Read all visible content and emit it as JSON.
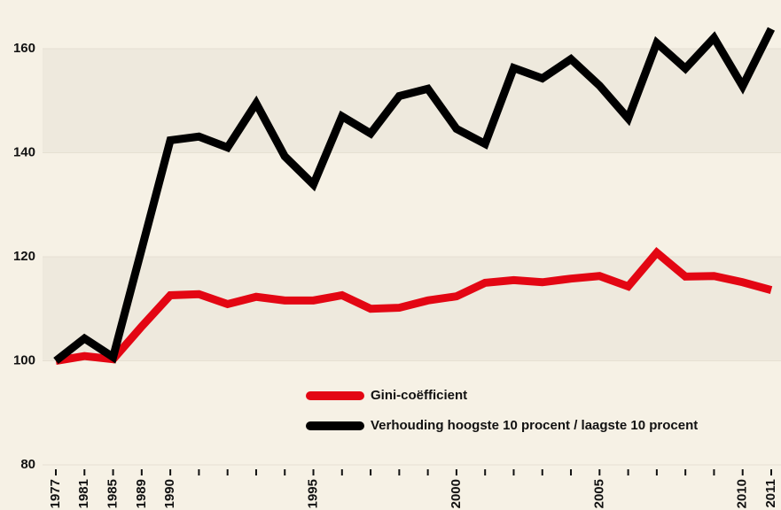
{
  "chart_data": {
    "type": "line",
    "categories": [
      "1977",
      "1981",
      "1985",
      "1989",
      "1990",
      null,
      null,
      null,
      null,
      "1995",
      null,
      null,
      null,
      null,
      "2000",
      null,
      null,
      null,
      null,
      "2005",
      null,
      null,
      null,
      null,
      "2010",
      "2011"
    ],
    "series": [
      {
        "name": "Gini-coëfficient",
        "color": "#e30613",
        "values": [
          100,
          100.9,
          100.3,
          106.6,
          112.6,
          112.8,
          110.9,
          112.3,
          111.6,
          111.6,
          112.6,
          110,
          110.2,
          111.6,
          112.4,
          115,
          115.5,
          115.1,
          115.8,
          116.3,
          114.3,
          120.8,
          116.2,
          116.3,
          115.1,
          113.6
        ]
      },
      {
        "name": "Verhouding hoogste 10 procent / laagste 10 procent",
        "color": "#000000",
        "values": [
          100,
          104.3,
          100.7,
          121.5,
          142.4,
          143.1,
          141,
          149.5,
          139.3,
          133.9,
          147,
          143.7,
          150.9,
          152.3,
          144.6,
          141.7,
          156.3,
          154.3,
          158,
          152.9,
          146.6,
          161.1,
          156.2,
          162.1,
          152.8,
          163.8
        ]
      }
    ],
    "ylim": [
      80,
      168
    ],
    "yticks": [
      80,
      100,
      120,
      140,
      160
    ],
    "grid": true
  }
}
